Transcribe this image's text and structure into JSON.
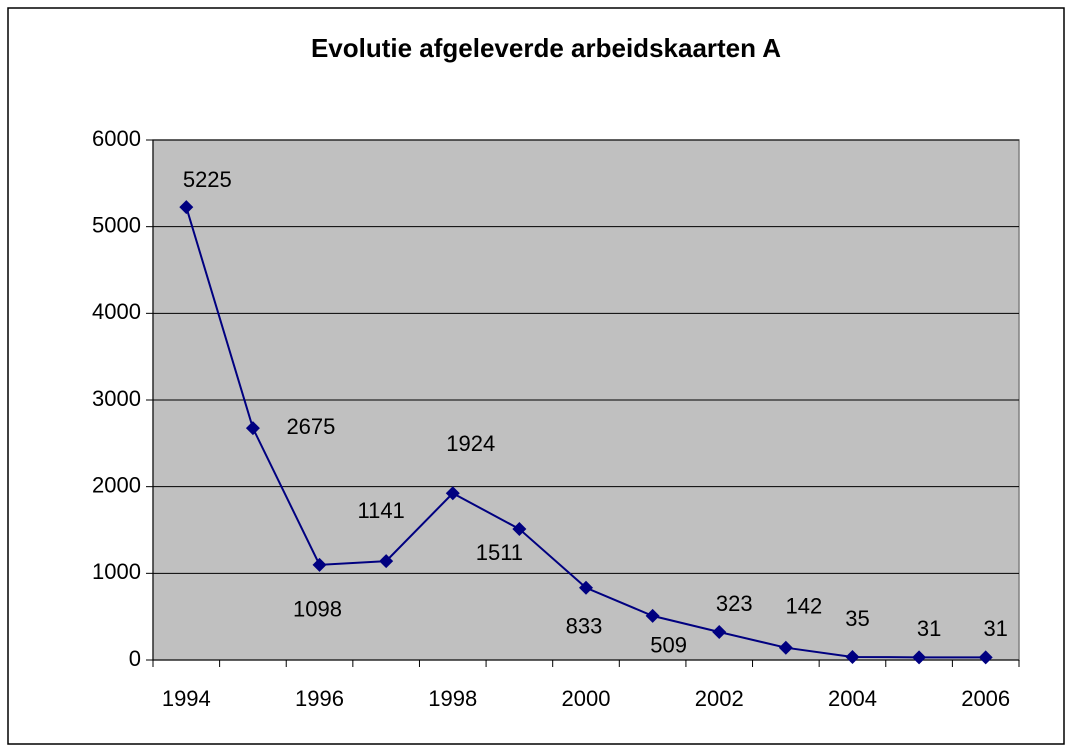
{
  "chart_data": {
    "type": "line",
    "title": "Evolutie afgeleverde arbeidskaarten A",
    "categories": [
      "1994",
      null,
      "1996",
      null,
      "1998",
      null,
      "2000",
      null,
      "2002",
      null,
      "2004",
      null,
      "2006"
    ],
    "series": [
      {
        "name": null,
        "color": "#000080",
        "values": [
          5225,
          2675,
          1098,
          1141,
          1924,
          1511,
          833,
          509,
          323,
          142,
          35,
          31,
          31
        ]
      }
    ],
    "ylim": [
      0,
      6000
    ],
    "yticks": [
      0,
      1000,
      2000,
      3000,
      4000,
      5000,
      6000
    ],
    "grid": true,
    "plot_background": "#c0c0c0"
  }
}
